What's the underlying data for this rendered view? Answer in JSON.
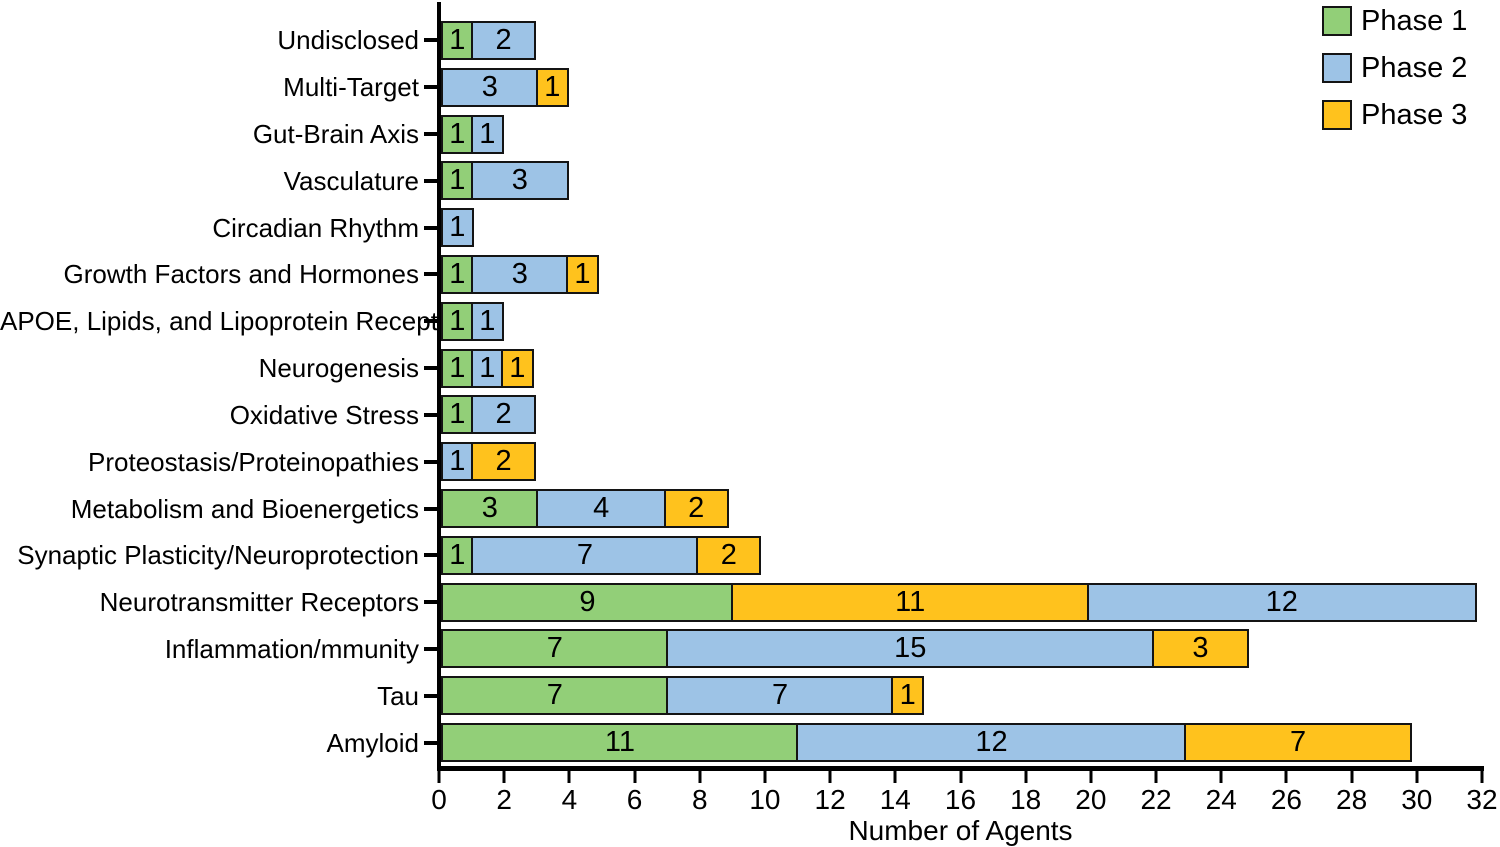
{
  "chart_data": {
    "type": "bar",
    "orientation": "horizontal",
    "stacked": true,
    "title": "",
    "xlabel": "Number of Agents",
    "ylabel": "",
    "xlim": [
      0,
      32
    ],
    "xticks": [
      0,
      2,
      4,
      6,
      8,
      10,
      12,
      14,
      16,
      18,
      20,
      22,
      24,
      26,
      28,
      30,
      32
    ],
    "grid": false,
    "legend_position": "top-right",
    "series_names": [
      "Phase 1",
      "Phase 2",
      "Phase 3"
    ],
    "phase_colors": {
      "Phase 1": "#92CF78",
      "Phase 2": "#9DC3E6",
      "Phase 3": "#FFC21D"
    },
    "bar_border_color": "#141414",
    "rows": [
      {
        "label": "Undisclosed",
        "segments": [
          {
            "phase": "Phase 1",
            "value": 1
          },
          {
            "phase": "Phase 2",
            "value": 2
          }
        ]
      },
      {
        "label": "Multi-Target",
        "segments": [
          {
            "phase": "Phase 2",
            "value": 3
          },
          {
            "phase": "Phase 3",
            "value": 1
          }
        ]
      },
      {
        "label": "Gut-Brain Axis",
        "segments": [
          {
            "phase": "Phase 1",
            "value": 1
          },
          {
            "phase": "Phase 2",
            "value": 1
          }
        ]
      },
      {
        "label": "Vasculature",
        "segments": [
          {
            "phase": "Phase 1",
            "value": 1
          },
          {
            "phase": "Phase 2",
            "value": 3
          }
        ]
      },
      {
        "label": "Circadian Rhythm",
        "segments": [
          {
            "phase": "Phase 2",
            "value": 1
          }
        ]
      },
      {
        "label": "Growth Factors and Hormones",
        "segments": [
          {
            "phase": "Phase 1",
            "value": 1
          },
          {
            "phase": "Phase 2",
            "value": 3
          },
          {
            "phase": "Phase 3",
            "value": 1
          }
        ]
      },
      {
        "label": "APOE, Lipids, and Lipoprotein Receptors",
        "segments": [
          {
            "phase": "Phase 1",
            "value": 1
          },
          {
            "phase": "Phase 2",
            "value": 1
          }
        ]
      },
      {
        "label": "Neurogenesis",
        "segments": [
          {
            "phase": "Phase 1",
            "value": 1
          },
          {
            "phase": "Phase 2",
            "value": 1
          },
          {
            "phase": "Phase 3",
            "value": 1
          }
        ]
      },
      {
        "label": "Oxidative Stress",
        "segments": [
          {
            "phase": "Phase 1",
            "value": 1
          },
          {
            "phase": "Phase 2",
            "value": 2
          }
        ]
      },
      {
        "label": "Proteostasis/Proteinopathies",
        "segments": [
          {
            "phase": "Phase 2",
            "value": 1
          },
          {
            "phase": "Phase 3",
            "value": 2
          }
        ]
      },
      {
        "label": "Metabolism and Bioenergetics",
        "segments": [
          {
            "phase": "Phase 1",
            "value": 3
          },
          {
            "phase": "Phase 2",
            "value": 4
          },
          {
            "phase": "Phase 3",
            "value": 2
          }
        ]
      },
      {
        "label": "Synaptic Plasticity/Neuroprotection",
        "segments": [
          {
            "phase": "Phase 1",
            "value": 1
          },
          {
            "phase": "Phase 2",
            "value": 7
          },
          {
            "phase": "Phase 3",
            "value": 2
          }
        ]
      },
      {
        "label": "Neurotransmitter Receptors",
        "segments": [
          {
            "phase": "Phase 1",
            "value": 9
          },
          {
            "phase": "Phase 3",
            "value": 11
          },
          {
            "phase": "Phase 2",
            "value": 12
          }
        ]
      },
      {
        "label": "Inflammation/mmunity",
        "segments": [
          {
            "phase": "Phase 1",
            "value": 7
          },
          {
            "phase": "Phase 2",
            "value": 15
          },
          {
            "phase": "Phase 3",
            "value": 3
          }
        ]
      },
      {
        "label": "Tau",
        "segments": [
          {
            "phase": "Phase 1",
            "value": 7
          },
          {
            "phase": "Phase 2",
            "value": 7
          },
          {
            "phase": "Phase 3",
            "value": 1
          }
        ]
      },
      {
        "label": "Amyloid",
        "segments": [
          {
            "phase": "Phase 1",
            "value": 11
          },
          {
            "phase": "Phase 2",
            "value": 12
          },
          {
            "phase": "Phase 3",
            "value": 7
          }
        ]
      }
    ]
  }
}
